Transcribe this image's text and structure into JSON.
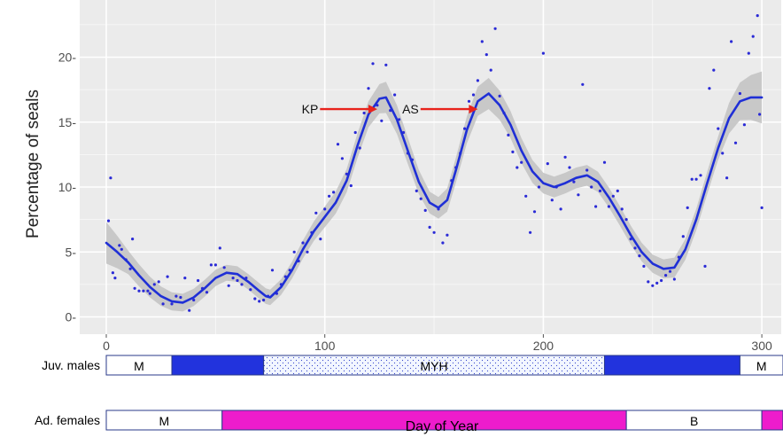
{
  "chart_data": {
    "type": "scatter",
    "xlabel": "Day of Year",
    "ylabel": "Percentage of seals",
    "xlim": [
      -6,
      312
    ],
    "ylim": [
      -1.2,
      24.2
    ],
    "xticks": [
      {
        "value": 0,
        "label": "0"
      },
      {
        "value": 100,
        "label": "100"
      },
      {
        "value": 200,
        "label": "200"
      },
      {
        "value": 300,
        "label": "300"
      }
    ],
    "yticks": [
      {
        "value": 0,
        "label": "0-"
      },
      {
        "value": 5,
        "label": "5-"
      },
      {
        "value": 10,
        "label": "10-"
      },
      {
        "value": 15,
        "label": "15-"
      },
      {
        "value": 20,
        "label": "20-"
      }
    ],
    "grid": true,
    "colors": {
      "panel": "#ebebeb",
      "grid": "#ffffff",
      "points": "#2a2ad6",
      "smooth_line": "#1f2fd6",
      "ribbon": "#c4c4c4",
      "arrow": "#e8231c",
      "blue_bar": "#2233dd",
      "magenta_bar": "#ee1ccc",
      "pattern_bar": "#f2f6ff"
    },
    "smooth_curve": [
      [
        0,
        5.7
      ],
      [
        5,
        5.0
      ],
      [
        10,
        4.2
      ],
      [
        15,
        3.2
      ],
      [
        20,
        2.3
      ],
      [
        25,
        1.6
      ],
      [
        30,
        1.2
      ],
      [
        35,
        1.1
      ],
      [
        40,
        1.5
      ],
      [
        45,
        2.2
      ],
      [
        50,
        3.0
      ],
      [
        55,
        3.4
      ],
      [
        60,
        3.3
      ],
      [
        65,
        2.7
      ],
      [
        70,
        2.0
      ],
      [
        73,
        1.6
      ],
      [
        75,
        1.5
      ],
      [
        80,
        2.3
      ],
      [
        85,
        3.6
      ],
      [
        90,
        5.2
      ],
      [
        95,
        6.6
      ],
      [
        100,
        7.7
      ],
      [
        105,
        8.8
      ],
      [
        110,
        10.5
      ],
      [
        115,
        13.2
      ],
      [
        120,
        15.6
      ],
      [
        125,
        16.8
      ],
      [
        128,
        16.9
      ],
      [
        133,
        15.2
      ],
      [
        138,
        12.8
      ],
      [
        143,
        10.4
      ],
      [
        148,
        8.8
      ],
      [
        152,
        8.4
      ],
      [
        156,
        9.0
      ],
      [
        160,
        11.3
      ],
      [
        165,
        14.4
      ],
      [
        170,
        16.6
      ],
      [
        175,
        17.2
      ],
      [
        180,
        16.3
      ],
      [
        185,
        14.8
      ],
      [
        190,
        12.8
      ],
      [
        195,
        11.2
      ],
      [
        200,
        10.3
      ],
      [
        205,
        10.0
      ],
      [
        210,
        10.3
      ],
      [
        215,
        10.7
      ],
      [
        220,
        10.9
      ],
      [
        225,
        10.4
      ],
      [
        230,
        9.2
      ],
      [
        235,
        7.8
      ],
      [
        240,
        6.3
      ],
      [
        245,
        5.0
      ],
      [
        250,
        4.1
      ],
      [
        255,
        3.7
      ],
      [
        260,
        3.8
      ],
      [
        265,
        5.2
      ],
      [
        270,
        7.5
      ],
      [
        275,
        10.3
      ],
      [
        280,
        13.0
      ],
      [
        285,
        15.3
      ],
      [
        290,
        16.6
      ],
      [
        295,
        16.9
      ],
      [
        300,
        16.9
      ]
    ],
    "ribbon_halfwidth": [
      [
        0,
        1.6
      ],
      [
        10,
        0.9
      ],
      [
        30,
        0.7
      ],
      [
        60,
        0.6
      ],
      [
        80,
        0.6
      ],
      [
        100,
        0.8
      ],
      [
        120,
        1.0
      ],
      [
        128,
        1.2
      ],
      [
        150,
        0.8
      ],
      [
        175,
        1.2
      ],
      [
        200,
        0.8
      ],
      [
        220,
        0.8
      ],
      [
        250,
        0.7
      ],
      [
        280,
        0.9
      ],
      [
        300,
        2.0
      ]
    ],
    "points": [
      [
        1,
        7.4
      ],
      [
        2,
        10.7
      ],
      [
        3,
        3.4
      ],
      [
        4,
        3.0
      ],
      [
        6,
        5.5
      ],
      [
        7,
        5.2
      ],
      [
        9,
        4.4
      ],
      [
        11,
        3.7
      ],
      [
        12,
        6.0
      ],
      [
        13,
        2.2
      ],
      [
        15,
        2.0
      ],
      [
        17,
        2.0
      ],
      [
        19,
        2.0
      ],
      [
        20,
        1.8
      ],
      [
        22,
        2.5
      ],
      [
        24,
        2.7
      ],
      [
        26,
        1.0
      ],
      [
        28,
        3.1
      ],
      [
        30,
        1.0
      ],
      [
        32,
        1.6
      ],
      [
        34,
        1.5
      ],
      [
        36,
        3.0
      ],
      [
        38,
        0.5
      ],
      [
        40,
        1.3
      ],
      [
        42,
        2.8
      ],
      [
        44,
        2.2
      ],
      [
        46,
        1.9
      ],
      [
        48,
        4.0
      ],
      [
        50,
        4.0
      ],
      [
        52,
        5.3
      ],
      [
        54,
        3.8
      ],
      [
        56,
        2.4
      ],
      [
        58,
        3.0
      ],
      [
        60,
        2.8
      ],
      [
        62,
        2.5
      ],
      [
        64,
        3.0
      ],
      [
        66,
        2.1
      ],
      [
        68,
        1.4
      ],
      [
        70,
        1.2
      ],
      [
        72,
        1.3
      ],
      [
        74,
        1.6
      ],
      [
        76,
        3.6
      ],
      [
        78,
        1.8
      ],
      [
        80,
        2.5
      ],
      [
        82,
        3.1
      ],
      [
        84,
        3.6
      ],
      [
        86,
        5.0
      ],
      [
        88,
        4.3
      ],
      [
        90,
        5.7
      ],
      [
        92,
        5.0
      ],
      [
        94,
        6.5
      ],
      [
        96,
        8.0
      ],
      [
        98,
        6.0
      ],
      [
        100,
        8.3
      ],
      [
        102,
        9.3
      ],
      [
        104,
        9.6
      ],
      [
        106,
        13.3
      ],
      [
        108,
        12.2
      ],
      [
        110,
        11.0
      ],
      [
        112,
        10.1
      ],
      [
        114,
        14.2
      ],
      [
        116,
        13.0
      ],
      [
        118,
        15.7
      ],
      [
        120,
        17.6
      ],
      [
        122,
        19.5
      ],
      [
        124,
        16.3
      ],
      [
        126,
        15.1
      ],
      [
        128,
        19.4
      ],
      [
        130,
        15.9
      ],
      [
        132,
        17.1
      ],
      [
        134,
        15.2
      ],
      [
        136,
        14.2
      ],
      [
        138,
        12.6
      ],
      [
        140,
        12.1
      ],
      [
        142,
        9.7
      ],
      [
        144,
        9.1
      ],
      [
        146,
        8.2
      ],
      [
        148,
        6.9
      ],
      [
        150,
        6.5
      ],
      [
        152,
        8.3
      ],
      [
        154,
        5.7
      ],
      [
        156,
        6.3
      ],
      [
        158,
        10.5
      ],
      [
        160,
        11.5
      ],
      [
        162,
        12.6
      ],
      [
        164,
        14.5
      ],
      [
        166,
        16.6
      ],
      [
        168,
        17.1
      ],
      [
        170,
        18.2
      ],
      [
        172,
        21.2
      ],
      [
        174,
        20.2
      ],
      [
        176,
        19.0
      ],
      [
        178,
        22.2
      ],
      [
        180,
        17.0
      ],
      [
        182,
        15.7
      ],
      [
        184,
        14.0
      ],
      [
        186,
        12.7
      ],
      [
        188,
        11.5
      ],
      [
        190,
        11.9
      ],
      [
        192,
        9.3
      ],
      [
        194,
        6.5
      ],
      [
        196,
        8.1
      ],
      [
        198,
        10.0
      ],
      [
        200,
        20.3
      ],
      [
        202,
        11.8
      ],
      [
        204,
        9.0
      ],
      [
        206,
        10.0
      ],
      [
        208,
        8.3
      ],
      [
        210,
        12.3
      ],
      [
        212,
        11.5
      ],
      [
        214,
        10.4
      ],
      [
        216,
        9.4
      ],
      [
        218,
        17.9
      ],
      [
        220,
        11.3
      ],
      [
        222,
        10.0
      ],
      [
        224,
        8.5
      ],
      [
        226,
        9.7
      ],
      [
        228,
        11.9
      ],
      [
        230,
        8.5
      ],
      [
        232,
        9.3
      ],
      [
        234,
        9.7
      ],
      [
        236,
        8.3
      ],
      [
        238,
        7.5
      ],
      [
        240,
        6.0
      ],
      [
        242,
        5.3
      ],
      [
        244,
        4.7
      ],
      [
        246,
        3.9
      ],
      [
        248,
        2.7
      ],
      [
        250,
        2.4
      ],
      [
        252,
        2.6
      ],
      [
        254,
        2.8
      ],
      [
        256,
        3.2
      ],
      [
        258,
        3.5
      ],
      [
        260,
        2.9
      ],
      [
        262,
        4.6
      ],
      [
        264,
        6.2
      ],
      [
        266,
        8.4
      ],
      [
        268,
        10.6
      ],
      [
        270,
        10.6
      ],
      [
        272,
        10.9
      ],
      [
        274,
        3.9
      ],
      [
        276,
        17.6
      ],
      [
        278,
        19.0
      ],
      [
        280,
        14.5
      ],
      [
        282,
        12.6
      ],
      [
        284,
        10.7
      ],
      [
        286,
        21.2
      ],
      [
        288,
        13.4
      ],
      [
        290,
        17.2
      ],
      [
        292,
        14.8
      ],
      [
        294,
        20.3
      ],
      [
        296,
        21.6
      ],
      [
        298,
        23.2
      ],
      [
        299,
        15.6
      ],
      [
        300,
        8.4
      ]
    ],
    "annotations": [
      {
        "label": "KP",
        "x": 124,
        "y": 16.0,
        "text_x": 97,
        "arrow_color": "#e8231c"
      },
      {
        "label": "AS",
        "x": 170,
        "y": 16.0,
        "text_x": 143,
        "arrow_color": "#e8231c"
      }
    ],
    "bars": {
      "rows": [
        {
          "label": "Juv. males",
          "segments": [
            {
              "start": 0,
              "end": 30,
              "fill": "white",
              "label": "M"
            },
            {
              "start": 30,
              "end": 72,
              "fill": "blue",
              "label": ""
            },
            {
              "start": 72,
              "end": 228,
              "fill": "pattern",
              "label": "MYH"
            },
            {
              "start": 228,
              "end": 290,
              "fill": "blue",
              "label": ""
            },
            {
              "start": 290,
              "end": 312,
              "fill": "white",
              "label": "M"
            }
          ]
        },
        {
          "label": "Ad. females",
          "segments": [
            {
              "start": 0,
              "end": 53,
              "fill": "white",
              "label": "M"
            },
            {
              "start": 53,
              "end": 238,
              "fill": "magenta",
              "label": ""
            },
            {
              "start": 238,
              "end": 300,
              "fill": "white",
              "label": "B"
            },
            {
              "start": 300,
              "end": 312,
              "fill": "magenta",
              "label": ""
            }
          ]
        }
      ]
    }
  }
}
